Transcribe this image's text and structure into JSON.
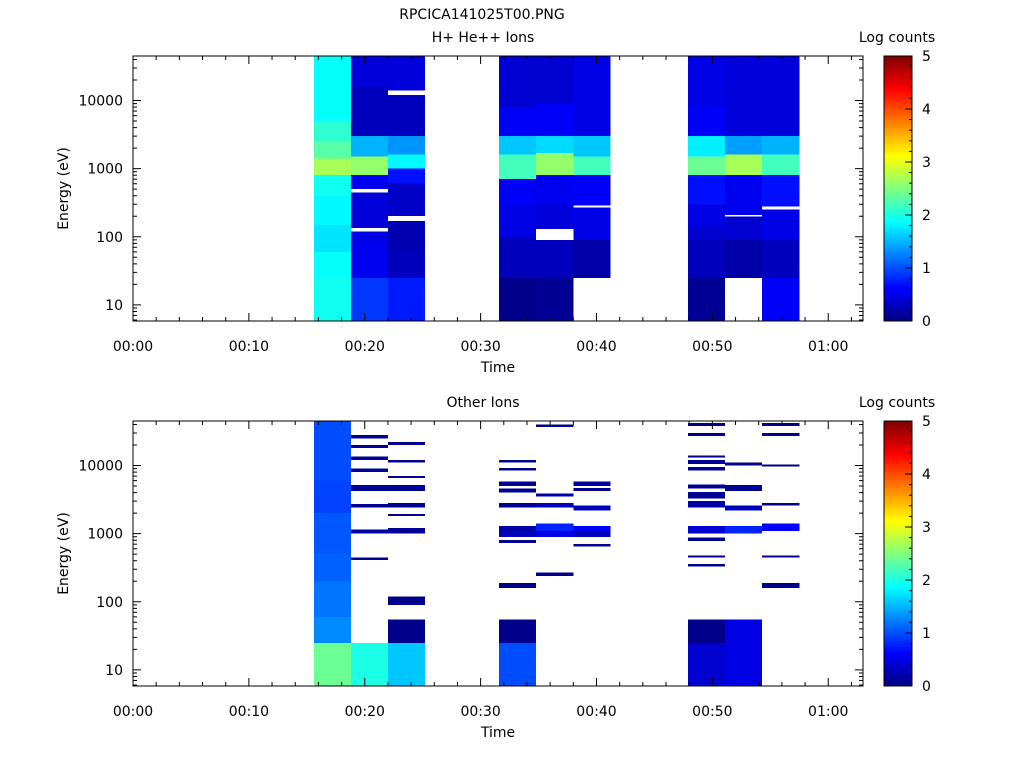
{
  "figure": {
    "title": "RPCICA141025T00.PNG"
  },
  "colormap": "jet",
  "chart_data": [
    {
      "type": "heatmap",
      "title": "H+ He++ Ions",
      "xlabel": "Time",
      "ylabel": "Energy (eV)",
      "x_axis": {
        "range_minutes": [
          0,
          63
        ],
        "tick_values_minutes": [
          0,
          10,
          20,
          30,
          40,
          50,
          60
        ],
        "tick_labels": [
          "00:00",
          "00:10",
          "00:20",
          "00:30",
          "00:40",
          "00:50",
          "01:00"
        ]
      },
      "y_axis": {
        "scale": "log",
        "range_ev": [
          5.8,
          45000
        ],
        "tick_values": [
          10,
          100,
          1000,
          10000
        ],
        "tick_labels": [
          "10",
          "100",
          "1000",
          "10000"
        ]
      },
      "colorbar": {
        "label": "Log counts",
        "range": [
          0,
          5
        ],
        "tick_values": [
          0,
          1,
          2,
          3,
          4,
          5
        ],
        "tick_labels": [
          "0",
          "1",
          "2",
          "3",
          "4",
          "5"
        ]
      },
      "columns": [
        {
          "t0": 15.6,
          "t1": 18.8,
          "bands": [
            [
              5.8,
              25,
              1.95
            ],
            [
              25,
              60,
              1.9
            ],
            [
              60,
              150,
              1.75
            ],
            [
              150,
              400,
              1.85
            ],
            [
              400,
              800,
              1.95
            ],
            [
              800,
              1400,
              2.7
            ],
            [
              1400,
              2500,
              2.3
            ],
            [
              2500,
              5000,
              2.1
            ],
            [
              5000,
              45000,
              1.9
            ]
          ]
        },
        {
          "t0": 18.8,
          "t1": 22.0,
          "bands": [
            [
              5.8,
              25,
              0.9
            ],
            [
              25,
              80,
              0.55
            ],
            [
              80,
              120,
              0.5
            ],
            [
              135,
              450,
              0.45
            ],
            [
              500,
              800,
              0.55
            ],
            [
              800,
              1500,
              2.6
            ],
            [
              1500,
              3000,
              1.5
            ],
            [
              3000,
              16000,
              0.3
            ],
            [
              16000,
              45000,
              0.45
            ]
          ]
        },
        {
          "t0": 22.0,
          "t1": 25.2,
          "bands": [
            [
              5.8,
              25,
              0.75
            ],
            [
              25,
              60,
              0.3
            ],
            [
              60,
              170,
              0.25
            ],
            [
              200,
              600,
              0.35
            ],
            [
              600,
              1000,
              0.7
            ],
            [
              1000,
              1600,
              1.85
            ],
            [
              1600,
              3000,
              1.35
            ],
            [
              3000,
              12000,
              0.3
            ],
            [
              14000,
              45000,
              0.45
            ]
          ]
        },
        {
          "t0": 31.6,
          "t1": 34.8,
          "bands": [
            [
              5.8,
              25,
              0.05
            ],
            [
              25,
              100,
              0.3
            ],
            [
              100,
              300,
              0.5
            ],
            [
              300,
              700,
              0.6
            ],
            [
              700,
              1600,
              2.2
            ],
            [
              1600,
              3000,
              1.6
            ],
            [
              3000,
              8000,
              0.6
            ],
            [
              8000,
              45000,
              0.4
            ]
          ]
        },
        {
          "t0": 34.8,
          "t1": 38.0,
          "bands": [
            [
              5.8,
              25,
              0.1
            ],
            [
              25,
              90,
              0.3
            ],
            [
              130,
              300,
              0.45
            ],
            [
              300,
              800,
              0.55
            ],
            [
              800,
              1700,
              2.6
            ],
            [
              1700,
              3000,
              1.7
            ],
            [
              3000,
              9000,
              0.6
            ],
            [
              9000,
              45000,
              0.4
            ]
          ]
        },
        {
          "t0": 38.0,
          "t1": 41.2,
          "bands": [
            [
              25,
              90,
              0.2
            ],
            [
              90,
              270,
              0.5
            ],
            [
              290,
              800,
              0.6
            ],
            [
              800,
              1500,
              2.2
            ],
            [
              1500,
              3000,
              1.6
            ],
            [
              3000,
              45000,
              0.5
            ]
          ]
        },
        {
          "t0": 47.9,
          "t1": 51.1,
          "bands": [
            [
              5.8,
              25,
              0.1
            ],
            [
              25,
              90,
              0.3
            ],
            [
              90,
              150,
              0.4
            ],
            [
              150,
              300,
              0.5
            ],
            [
              300,
              800,
              0.7
            ],
            [
              800,
              1500,
              2.4
            ],
            [
              1500,
              3000,
              1.8
            ],
            [
              3000,
              8000,
              0.6
            ],
            [
              8000,
              45000,
              0.5
            ]
          ]
        },
        {
          "t0": 51.1,
          "t1": 54.3,
          "bands": [
            [
              25,
              90,
              0.2
            ],
            [
              90,
              200,
              0.4
            ],
            [
              210,
              800,
              0.55
            ],
            [
              800,
              1600,
              2.7
            ],
            [
              1600,
              3000,
              1.4
            ],
            [
              3000,
              45000,
              0.45
            ]
          ]
        },
        {
          "t0": 54.3,
          "t1": 57.5,
          "bands": [
            [
              5.8,
              25,
              0.6
            ],
            [
              25,
              90,
              0.3
            ],
            [
              90,
              250,
              0.5
            ],
            [
              280,
              800,
              0.7
            ],
            [
              800,
              1600,
              2.2
            ],
            [
              1600,
              3000,
              1.5
            ],
            [
              3000,
              45000,
              0.45
            ]
          ]
        }
      ]
    },
    {
      "type": "heatmap",
      "title": "Other Ions",
      "xlabel": "Time",
      "ylabel": "Energy (eV)",
      "x_axis": {
        "range_minutes": [
          0,
          63
        ],
        "tick_values_minutes": [
          0,
          10,
          20,
          30,
          40,
          50,
          60
        ],
        "tick_labels": [
          "00:00",
          "00:10",
          "00:20",
          "00:30",
          "00:40",
          "00:50",
          "01:00"
        ]
      },
      "y_axis": {
        "scale": "log",
        "range_ev": [
          5.8,
          45000
        ],
        "tick_values": [
          10,
          100,
          1000,
          10000
        ],
        "tick_labels": [
          "10",
          "100",
          "1000",
          "10000"
        ]
      },
      "colorbar": {
        "label": "Log counts",
        "range": [
          0,
          5
        ],
        "tick_values": [
          0,
          1,
          2,
          3,
          4,
          5
        ],
        "tick_labels": [
          "0",
          "1",
          "2",
          "3",
          "4",
          "5"
        ]
      },
      "columns": [
        {
          "t0": 15.6,
          "t1": 18.8,
          "bands": [
            [
              5.8,
              25,
              2.4
            ],
            [
              25,
              60,
              1.3
            ],
            [
              60,
              200,
              1.2
            ],
            [
              200,
              500,
              1.1
            ],
            [
              500,
              2000,
              1.05
            ],
            [
              2000,
              6000,
              0.95
            ],
            [
              6000,
              45000,
              1.0
            ]
          ]
        },
        {
          "t0": 18.8,
          "t1": 22.0,
          "bands": [
            [
              5.8,
              25,
              2.0
            ],
            [
              410,
              450,
              0.1
            ],
            [
              1000,
              1150,
              0.15
            ],
            [
              2400,
              2700,
              0.1
            ],
            [
              4200,
              5200,
              0.1
            ],
            [
              8000,
              9000,
              0.1
            ],
            [
              12000,
              13500,
              0.1
            ],
            [
              18000,
              20000,
              0.1
            ],
            [
              25000,
              28000,
              0.1
            ]
          ]
        },
        {
          "t0": 22.0,
          "t1": 25.2,
          "bands": [
            [
              5.8,
              25,
              1.6
            ],
            [
              25,
              55,
              0.05
            ],
            [
              90,
              120,
              0.05
            ],
            [
              1000,
              1200,
              0.1
            ],
            [
              1800,
              1950,
              0.05
            ],
            [
              2400,
              2800,
              0.1
            ],
            [
              4200,
              5200,
              0.1
            ],
            [
              6500,
              7000,
              0.05
            ],
            [
              11000,
              12000,
              0.05
            ],
            [
              20000,
              22000,
              0.05
            ]
          ]
        },
        {
          "t0": 31.6,
          "t1": 34.8,
          "bands": [
            [
              5.8,
              25,
              1.0
            ],
            [
              25,
              55,
              0.05
            ],
            [
              160,
              190,
              0.05
            ],
            [
              730,
              800,
              0.1
            ],
            [
              900,
              1100,
              0.3
            ],
            [
              1100,
              1300,
              0.2
            ],
            [
              2400,
              2800,
              0.1
            ],
            [
              4000,
              4600,
              0.1
            ],
            [
              5000,
              5800,
              0.1
            ],
            [
              8500,
              9200,
              0.05
            ],
            [
              11000,
              12000,
              0.05
            ]
          ]
        },
        {
          "t0": 34.8,
          "t1": 38.0,
          "bands": [
            [
              240,
              270,
              0.05
            ],
            [
              900,
              1100,
              0.5
            ],
            [
              1100,
              1400,
              0.8
            ],
            [
              2400,
              2800,
              0.3
            ],
            [
              3500,
              3900,
              0.2
            ],
            [
              37000,
              40000,
              0.05
            ]
          ]
        },
        {
          "t0": 38.0,
          "t1": 41.2,
          "bands": [
            [
              650,
              700,
              0.05
            ],
            [
              900,
              1100,
              0.3
            ],
            [
              1100,
              1300,
              0.6
            ],
            [
              2200,
              2600,
              0.3
            ],
            [
              4200,
              4700,
              0.1
            ],
            [
              5000,
              5800,
              0.1
            ]
          ]
        },
        {
          "t0": 47.9,
          "t1": 51.1,
          "bands": [
            [
              5.8,
              25,
              0.4
            ],
            [
              25,
              55,
              0.05
            ],
            [
              330,
              360,
              0.05
            ],
            [
              450,
              480,
              0.05
            ],
            [
              780,
              880,
              0.1
            ],
            [
              1000,
              1300,
              0.4
            ],
            [
              2400,
              3000,
              0.2
            ],
            [
              3300,
              4100,
              0.1
            ],
            [
              4600,
              5300,
              0.1
            ],
            [
              8500,
              9500,
              0.1
            ],
            [
              10500,
              12000,
              0.1
            ],
            [
              13000,
              14000,
              0.05
            ],
            [
              27000,
              30000,
              0.05
            ],
            [
              38000,
              42000,
              0.05
            ]
          ]
        },
        {
          "t0": 51.1,
          "t1": 54.3,
          "bands": [
            [
              5.8,
              25,
              0.5
            ],
            [
              25,
              55,
              0.5
            ],
            [
              1000,
              1300,
              0.8
            ],
            [
              2200,
              2600,
              0.3
            ],
            [
              4200,
              5200,
              0.1
            ],
            [
              10000,
              11000,
              0.05
            ]
          ]
        },
        {
          "t0": 54.3,
          "t1": 57.5,
          "bands": [
            [
              160,
              190,
              0.05
            ],
            [
              450,
              480,
              0.05
            ],
            [
              1100,
              1400,
              0.6
            ],
            [
              2600,
              2800,
              0.05
            ],
            [
              9700,
              10300,
              0.05
            ],
            [
              27000,
              30000,
              0.05
            ],
            [
              38000,
              42000,
              0.05
            ]
          ]
        }
      ]
    }
  ]
}
